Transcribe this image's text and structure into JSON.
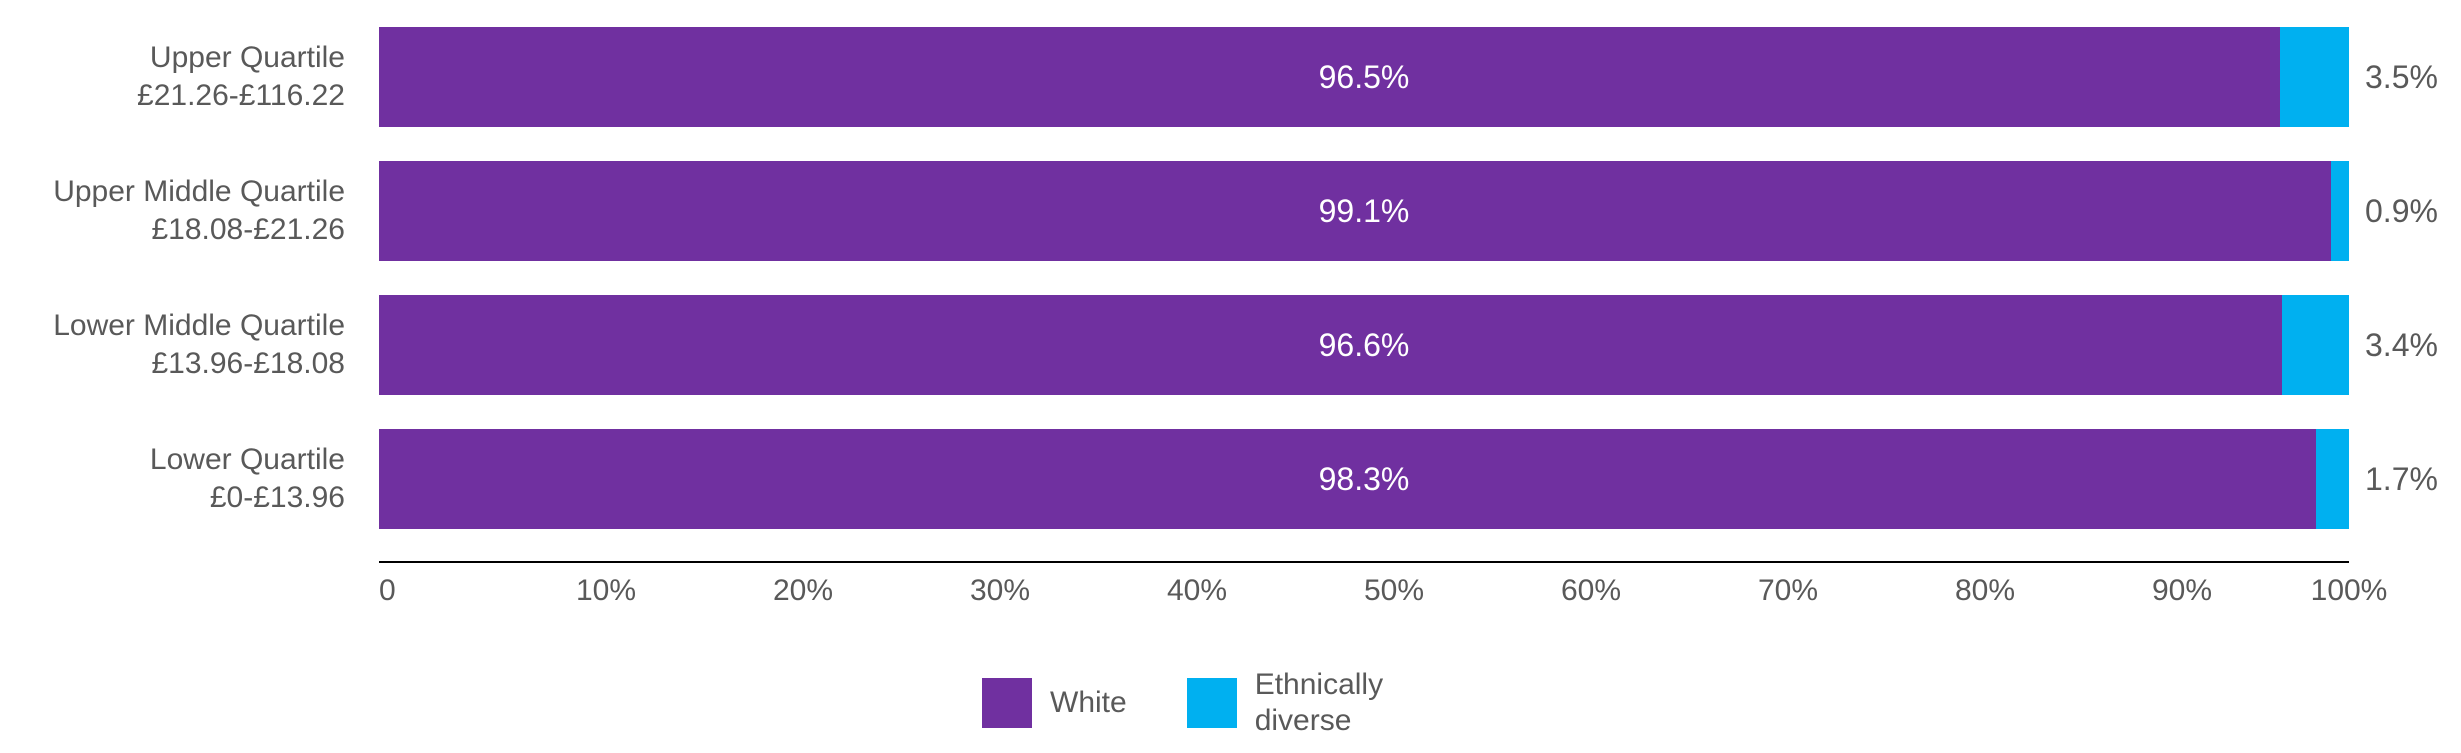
{
  "colors": {
    "background": "#FFFFFF",
    "text_gray": "#595959",
    "bar_label_white": "#FFFFFF",
    "axis_line": "#000000",
    "series_white": "#7030A0",
    "series_ethnically_diverse": "#00B0F0"
  },
  "chart_data": {
    "type": "bar",
    "orientation": "horizontal",
    "stacked": true,
    "title": "",
    "grid": false,
    "categories": [
      {
        "name": "Upper Quartile",
        "range": "£21.26-£116.22"
      },
      {
        "name": "Upper Middle Quartile",
        "range": "£18.08-£21.26"
      },
      {
        "name": "Lower Middle Quartile",
        "range": "£13.96-£18.08"
      },
      {
        "name": "Lower Quartile",
        "range": "£0-£13.96"
      }
    ],
    "series": [
      {
        "name": "White",
        "color": "#7030A0",
        "values": [
          96.5,
          99.1,
          96.6,
          98.3
        ],
        "labels": [
          "96.5%",
          "99.1%",
          "96.6%",
          "98.3%"
        ],
        "label_position": "inside-center",
        "label_color": "#FFFFFF"
      },
      {
        "name": "Ethnically diverse",
        "color": "#00B0F0",
        "values": [
          3.5,
          0.9,
          3.4,
          1.7
        ],
        "labels": [
          "3.5%",
          "0.9%",
          "3.4%",
          "1.7%"
        ],
        "label_position": "outside-end",
        "label_color": "#595959"
      }
    ],
    "x_axis": {
      "min": 0,
      "max": 100,
      "ticks": [
        "0",
        "10%",
        "20%",
        "30%",
        "40%",
        "50%",
        "60%",
        "70%",
        "80%",
        "90%",
        "100%"
      ]
    },
    "legend": {
      "position": "bottom",
      "items": [
        {
          "label": "White",
          "color": "#7030A0"
        },
        {
          "label": "Ethnically diverse",
          "color": "#00B0F0"
        }
      ]
    }
  }
}
